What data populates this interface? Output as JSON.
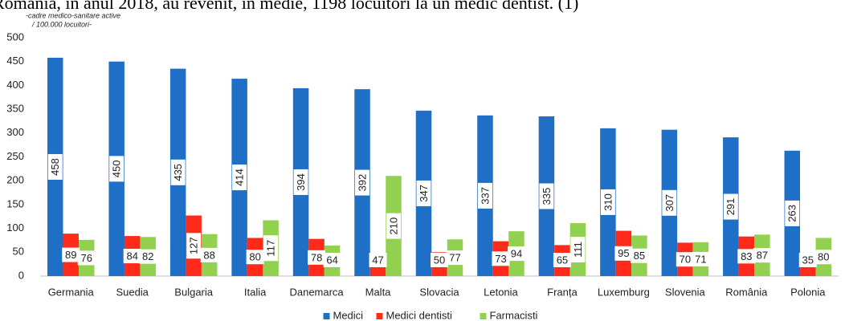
{
  "chart_data": {
    "type": "bar",
    "caption": "România, în anul 2018, au revenit, în medie, 1198 locuitori la un medic dentist. (1)",
    "y_label_line1": "-cadre medico-sanitare active",
    "y_label_line2": "/ 100.000 locuitori-",
    "categories": [
      "Germania",
      "Suedia",
      "Bulgaria",
      "Italia",
      "Danemarca",
      "Malta",
      "Slovacia",
      "Letonia",
      "Franța",
      "Luxemburg",
      "Slovenia",
      "România",
      "Polonia"
    ],
    "series": [
      {
        "name": "Medici",
        "color": "#1f6fc7",
        "values": [
          458,
          450,
          435,
          414,
          394,
          392,
          347,
          337,
          335,
          310,
          307,
          291,
          263
        ]
      },
      {
        "name": "Medici dentisti",
        "color": "#ff2a1a",
        "values": [
          89,
          84,
          127,
          80,
          78,
          47,
          50,
          73,
          65,
          95,
          70,
          83,
          35
        ]
      },
      {
        "name": "Farmacisti",
        "color": "#92d050",
        "values": [
          76,
          82,
          88,
          117,
          64,
          210,
          77,
          94,
          111,
          85,
          71,
          87,
          80
        ]
      }
    ],
    "ylim": [
      0,
      500
    ],
    "yticks": [
      0,
      50,
      100,
      150,
      200,
      250,
      300,
      350,
      400,
      450,
      500
    ],
    "grid": false,
    "legend": "bottom"
  }
}
